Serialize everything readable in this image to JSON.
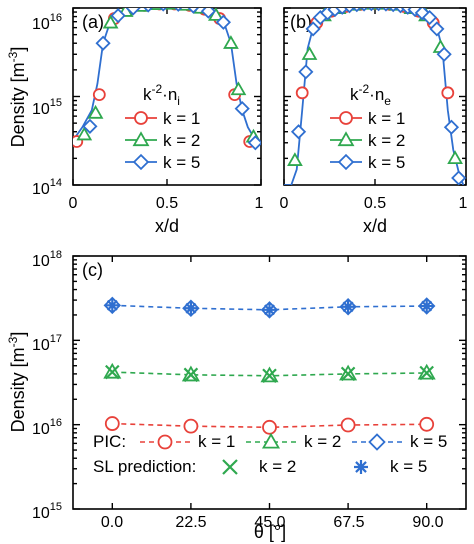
{
  "figure": {
    "colors": {
      "k1": "#e8413a",
      "k2": "#2fa84f",
      "k5": "#2f6fd0",
      "axis": "#000000"
    }
  },
  "chart_data": [
    {
      "id": "a",
      "type": "line",
      "panel_label": "(a)",
      "xlabel": "x/d",
      "ylabel": "Density [m",
      "ylabel_sup": "-3",
      "ylabel_end": "]",
      "yscale": "log",
      "xlim": [
        0,
        1
      ],
      "ylim_exp": [
        14,
        16
      ],
      "xticks": [
        "0",
        "0.5",
        "1"
      ],
      "ytick_bases": [
        "10",
        "10",
        "10"
      ],
      "ytick_exps": [
        "14",
        "15",
        "16"
      ],
      "annotation_base": "k",
      "annotation_sup": "-2",
      "annotation_rest": "·n",
      "annotation_sub": "i",
      "legend": [
        "k = 1",
        "k = 2",
        "k = 5"
      ],
      "curve_x": [
        0.0,
        0.05,
        0.1,
        0.13,
        0.16,
        0.19,
        0.22,
        0.26,
        0.3,
        0.35,
        0.4,
        0.45,
        0.5,
        0.55,
        0.6,
        0.65,
        0.7,
        0.74,
        0.78,
        0.81,
        0.84,
        0.87,
        0.9,
        0.93,
        0.96,
        1.0
      ],
      "curve_y": [
        320000000000000.0,
        450000000000000.0,
        700000000000000.0,
        1400000000000000.0,
        4000000000000000.0,
        6200000000000000.0,
        7600000000000000.0,
        8800000000000000.0,
        9700000000000000.0,
        1.03e+16,
        1.08e+16,
        1.11e+16,
        1.12e+16,
        1.11e+16,
        1.08e+16,
        1.03e+16,
        9700000000000000.0,
        8800000000000000.0,
        7600000000000000.0,
        6200000000000000.0,
        4000000000000000.0,
        1400000000000000.0,
        700000000000000.0,
        450000000000000.0,
        350000000000000.0,
        300000000000000.0
      ],
      "series": [
        {
          "name": "k = 1",
          "marker": "circle",
          "x": [
            0.02,
            0.14,
            0.22,
            0.3,
            0.38,
            0.46,
            0.54,
            0.62,
            0.7,
            0.78,
            0.86,
            0.94
          ],
          "y": [
            310000000000000.0,
            1050000000000000.0,
            7600000000000000.0,
            9700000000000000.0,
            1.07e+16,
            1.11e+16,
            1.11e+16,
            1.07e+16,
            9700000000000000.0,
            7600000000000000.0,
            1050000000000000.0,
            310000000000000.0
          ]
        },
        {
          "name": "k = 2",
          "marker": "triangle",
          "x": [
            0.06,
            0.12,
            0.2,
            0.28,
            0.36,
            0.44,
            0.52,
            0.6,
            0.68,
            0.76,
            0.84,
            0.88,
            0.96
          ],
          "y": [
            370000000000000.0,
            650000000000000.0,
            6800000000000000.0,
            9200000000000000.0,
            1.05e+16,
            1.1e+16,
            1.11e+16,
            1.08e+16,
            1e+16,
            8300000000000000.0,
            4000000000000000.0,
            1200000000000000.0,
            350000000000000.0
          ]
        },
        {
          "name": "k = 5",
          "marker": "diamond",
          "x": [
            0.09,
            0.16,
            0.24,
            0.32,
            0.4,
            0.48,
            0.56,
            0.64,
            0.72,
            0.8,
            0.9,
            0.97
          ],
          "y": [
            460000000000000.0,
            4000000000000000.0,
            8200000000000000.0,
            1e+16,
            1.08e+16,
            1.11e+16,
            1.1e+16,
            1.05e+16,
            9200000000000000.0,
            6900000000000000.0,
            730000000000000.0,
            300000000000000.0
          ]
        }
      ]
    },
    {
      "id": "b",
      "type": "line",
      "panel_label": "(b)",
      "xlabel": "x/d",
      "yscale": "log",
      "xlim": [
        0,
        1
      ],
      "ylim_exp": [
        14,
        16
      ],
      "xticks": [
        "0",
        "0.5",
        "1"
      ],
      "annotation_base": "k",
      "annotation_sup": "-2",
      "annotation_rest": "·n",
      "annotation_sub": "e",
      "legend": [
        "k = 1",
        "k = 2",
        "k = 5"
      ],
      "curve_x": [
        0.0,
        0.04,
        0.07,
        0.1,
        0.13,
        0.16,
        0.2,
        0.25,
        0.3,
        0.35,
        0.4,
        0.45,
        0.5,
        0.55,
        0.6,
        0.65,
        0.7,
        0.75,
        0.8,
        0.84,
        0.87,
        0.9,
        0.93,
        0.96,
        0.985
      ],
      "curve_y": [
        100000000000000.0,
        100000000000000.0,
        150000000000000.0,
        700000000000000.0,
        3500000000000000.0,
        6000000000000000.0,
        7800000000000000.0,
        9000000000000000.0,
        9900000000000000.0,
        1.05e+16,
        1.09e+16,
        1.11e+16,
        1.12e+16,
        1.11e+16,
        1.09e+16,
        1.05e+16,
        9900000000000000.0,
        9000000000000000.0,
        7800000000000000.0,
        6000000000000000.0,
        3500000000000000.0,
        700000000000000.0,
        250000000000000.0,
        140000000000000.0,
        100000000000000.0
      ],
      "series": [
        {
          "name": "k = 1",
          "marker": "circle",
          "x": [
            0.1,
            0.18,
            0.26,
            0.34,
            0.42,
            0.5,
            0.58,
            0.66,
            0.74,
            0.82,
            0.9
          ],
          "y": [
            1100000000000000.0,
            6800000000000000.0,
            9200000000000000.0,
            1.04e+16,
            1.1e+16,
            1.12e+16,
            1.1e+16,
            1.04e+16,
            9200000000000000.0,
            6800000000000000.0,
            1100000000000000.0
          ]
        },
        {
          "name": "k = 2",
          "marker": "triangle",
          "x": [
            0.06,
            0.14,
            0.22,
            0.3,
            0.38,
            0.46,
            0.54,
            0.62,
            0.7,
            0.78,
            0.86,
            0.94
          ],
          "y": [
            190000000000000.0,
            3000000000000000.0,
            8200000000000000.0,
            9900000000000000.0,
            1.08e+16,
            1.11e+16,
            1.11e+16,
            1.08e+16,
            9900000000000000.0,
            8200000000000000.0,
            3600000000000000.0,
            200000000000000.0
          ]
        },
        {
          "name": "k = 5",
          "marker": "diamond",
          "x": [
            0.08,
            0.12,
            0.16,
            0.2,
            0.24,
            0.28,
            0.32,
            0.36,
            0.4,
            0.44,
            0.48,
            0.52,
            0.56,
            0.6,
            0.64,
            0.68,
            0.72,
            0.76,
            0.8,
            0.84,
            0.88,
            0.92,
            0.96
          ],
          "y": [
            400000000000000.0,
            1900000000000000.0,
            5800000000000000.0,
            7800000000000000.0,
            8800000000000000.0,
            9600000000000000.0,
            1.02e+16,
            1.06e+16,
            1.09e+16,
            1.11e+16,
            1.12e+16,
            1.12e+16,
            1.11e+16,
            1.09e+16,
            1.06e+16,
            1.02e+16,
            9600000000000000.0,
            8800000000000000.0,
            7800000000000000.0,
            5800000000000000.0,
            3000000000000000.0,
            450000000000000.0,
            120000000000000.0
          ]
        }
      ]
    },
    {
      "id": "c",
      "type": "line",
      "panel_label": "(c)",
      "xlabel": "θ [°]",
      "ylabel": "Density [m",
      "ylabel_sup": "-3",
      "ylabel_end": "]",
      "yscale": "log",
      "xlim": [
        -11.25,
        101.25
      ],
      "ylim_exp": [
        15,
        18
      ],
      "categories": [
        0.0,
        22.5,
        45.0,
        67.5,
        90.0
      ],
      "xticks": [
        "0.0",
        "22.5",
        "45.0",
        "67.5",
        "90.0"
      ],
      "ytick_bases": [
        "10",
        "10",
        "10",
        "10"
      ],
      "ytick_exps": [
        "15",
        "16",
        "17",
        "18"
      ],
      "legend_pic_label": "PIC:",
      "legend_sl_label": "SL prediction:",
      "series": [
        {
          "name": "k = 1",
          "group": "PIC",
          "marker": "circle",
          "dashed": true,
          "values": [
            1.03e+16,
            9600000000000000.0,
            9300000000000000.0,
            9900000000000000.0,
            1.01e+16
          ]
        },
        {
          "name": "k = 2",
          "group": "PIC",
          "marker": "triangle",
          "dashed": true,
          "values": [
            4.2e+16,
            3.9e+16,
            3.8e+16,
            4e+16,
            4.1e+16
          ]
        },
        {
          "name": "k = 5",
          "group": "PIC",
          "marker": "diamond",
          "dashed": true,
          "values": [
            2.6e+17,
            2.4e+17,
            2.3e+17,
            2.5e+17,
            2.55e+17
          ]
        },
        {
          "name": "k = 2",
          "group": "SL prediction",
          "marker": "x",
          "dashed": false,
          "values": [
            4.2e+16,
            3.9e+16,
            3.8e+16,
            4e+16,
            4.1e+16
          ]
        },
        {
          "name": "k = 5",
          "group": "SL prediction",
          "marker": "star",
          "dashed": false,
          "values": [
            2.6e+17,
            2.4e+17,
            2.3e+17,
            2.5e+17,
            2.55e+17
          ]
        }
      ]
    }
  ]
}
